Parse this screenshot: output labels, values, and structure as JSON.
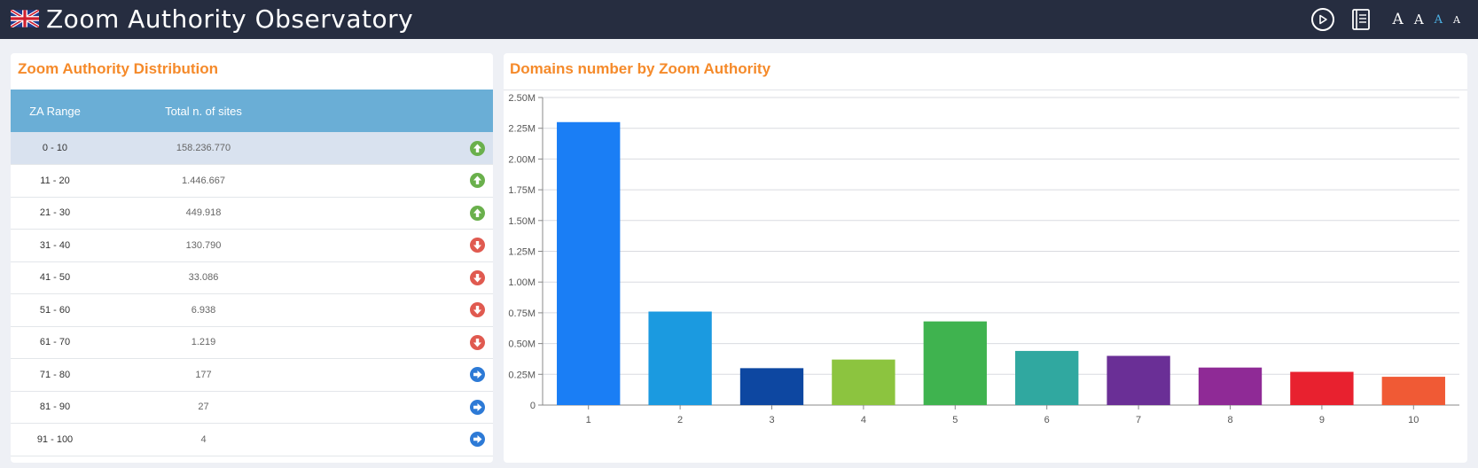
{
  "app": {
    "title": "Zoom Authority Observatory",
    "font_size_labels": [
      "A",
      "A",
      "A",
      "A"
    ],
    "icons": {
      "flag": "uk-flag-icon",
      "play": "play-circle-icon",
      "book": "book-icon"
    }
  },
  "table": {
    "title": "Zoom Authority Distribution",
    "headers": {
      "range": "ZA Range",
      "total": "Total n. of sites"
    },
    "rows": [
      {
        "range": "0 - 10",
        "total": "158.236.770",
        "trend": "up"
      },
      {
        "range": "11 - 20",
        "total": "1.446.667",
        "trend": "up"
      },
      {
        "range": "21 - 30",
        "total": "449.918",
        "trend": "up"
      },
      {
        "range": "31 - 40",
        "total": "130.790",
        "trend": "down"
      },
      {
        "range": "41 - 50",
        "total": "33.086",
        "trend": "down"
      },
      {
        "range": "51 - 60",
        "total": "6.938",
        "trend": "down"
      },
      {
        "range": "61 - 70",
        "total": "1.219",
        "trend": "down"
      },
      {
        "range": "71 - 80",
        "total": "177",
        "trend": "right"
      },
      {
        "range": "81 - 90",
        "total": "27",
        "trend": "right"
      },
      {
        "range": "91 - 100",
        "total": "4",
        "trend": "right"
      }
    ]
  },
  "chart": {
    "title": "Domains number by Zoom Authority"
  },
  "chart_data": {
    "type": "bar",
    "title": "Domains number by Zoom Authority",
    "categories": [
      "1",
      "2",
      "3",
      "4",
      "5",
      "6",
      "7",
      "8",
      "9",
      "10"
    ],
    "values": [
      2300000,
      760000,
      300000,
      370000,
      680000,
      440000,
      400000,
      305000,
      270000,
      230000
    ],
    "colors": [
      "#1a7ef5",
      "#1b9ae0",
      "#0d47a1",
      "#8cc43f",
      "#3fb34f",
      "#30a8a0",
      "#6a2f96",
      "#8f2a96",
      "#e8212f",
      "#f05a35"
    ],
    "yticks": [
      "0",
      "0.25M",
      "0.50M",
      "0.75M",
      "1.00M",
      "1.25M",
      "1.50M",
      "1.75M",
      "2.00M",
      "2.25M",
      "2.50M"
    ],
    "ylim": [
      0,
      2500000
    ],
    "xlabel": "",
    "ylabel": "",
    "grid": true
  }
}
